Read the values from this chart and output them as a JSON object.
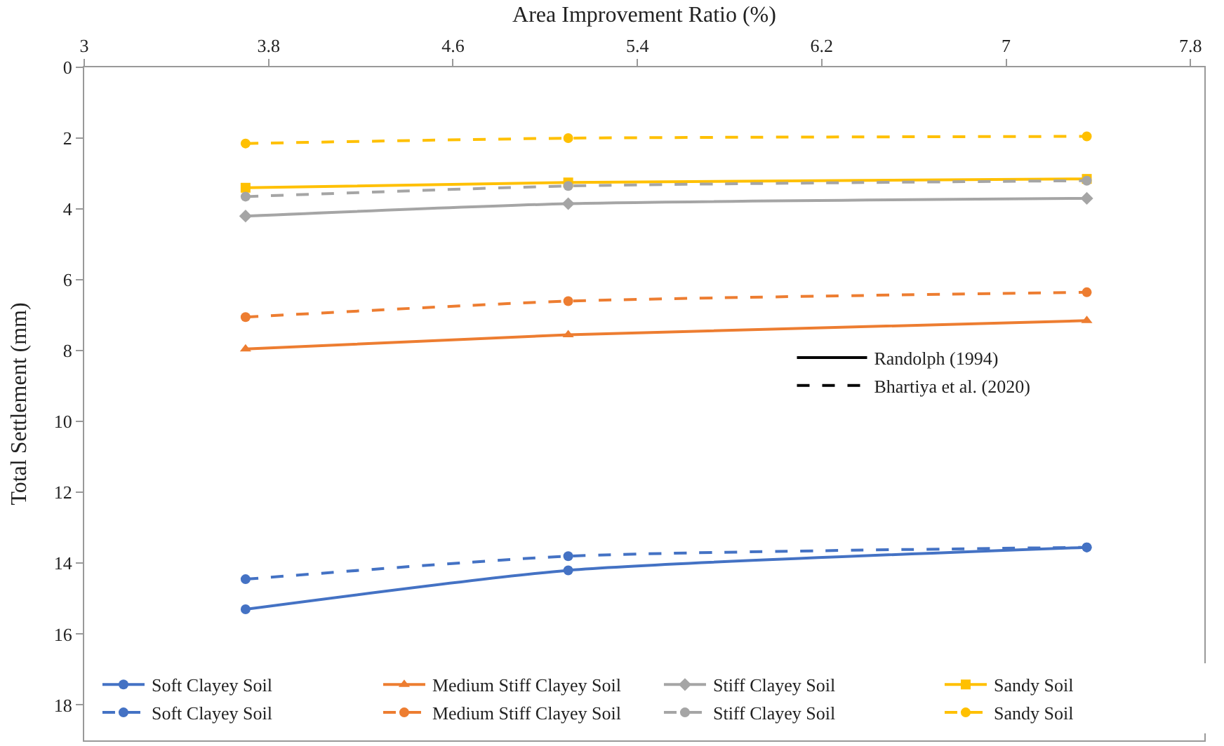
{
  "chart_data": {
    "type": "line",
    "xlabel": "Area Improvement Ratio (%)",
    "ylabel": "Total Settlement (mm)",
    "x": [
      3.7,
      5.1,
      7.35
    ],
    "xlim": [
      3,
      7.86
    ],
    "xticks": [
      3,
      3.8,
      4.6,
      5.4,
      6.2,
      7,
      7.8
    ],
    "ylim": [
      19,
      0
    ],
    "yticks": [
      0,
      2,
      4,
      6,
      8,
      10,
      12,
      14,
      16,
      18
    ],
    "legend": "bottom",
    "series": [
      {
        "name": "Soft Clayey Soil",
        "color": "#4472c4",
        "marker": "circle",
        "line_style": "solid",
        "values": [
          15.3,
          14.2,
          13.55
        ]
      },
      {
        "name": "Medium Stiff Clayey Soil",
        "color": "#ed7d31",
        "marker": "triangle",
        "line_style": "solid",
        "values": [
          7.95,
          7.55,
          7.15
        ]
      },
      {
        "name": "Stiff Clayey Soil",
        "color": "#a5a5a5",
        "marker": "diamond",
        "line_style": "solid",
        "values": [
          4.2,
          3.85,
          3.7
        ]
      },
      {
        "name": "Sandy Soil",
        "color": "#ffc000",
        "marker": "square",
        "line_style": "solid",
        "values": [
          3.4,
          3.25,
          3.15
        ]
      },
      {
        "name": "Soft Clayey Soil",
        "color": "#4472c4",
        "marker": "circle",
        "line_style": "dashed",
        "values": [
          14.45,
          13.8,
          13.55
        ]
      },
      {
        "name": "Medium Stiff Clayey Soil",
        "color": "#ed7d31",
        "marker": "circle",
        "line_style": "dashed",
        "values": [
          7.05,
          6.6,
          6.35
        ]
      },
      {
        "name": "Stiff Clayey Soil",
        "color": "#a5a5a5",
        "marker": "circle",
        "line_style": "dashed",
        "values": [
          3.65,
          3.35,
          3.2
        ]
      },
      {
        "name": "Sandy Soil",
        "color": "#ffc000",
        "marker": "circle",
        "line_style": "dashed",
        "values": [
          2.15,
          2.0,
          1.95
        ]
      },
      {
        "name": "Randolph (1994)",
        "color": "#000000",
        "marker": "none",
        "line_style": "solid",
        "values": [
          null,
          null,
          null
        ]
      },
      {
        "name": "Bhartiya et al. (2020)",
        "color": "#000000",
        "marker": "none",
        "line_style": "dashed",
        "values": [
          null,
          null,
          null
        ]
      }
    ]
  }
}
